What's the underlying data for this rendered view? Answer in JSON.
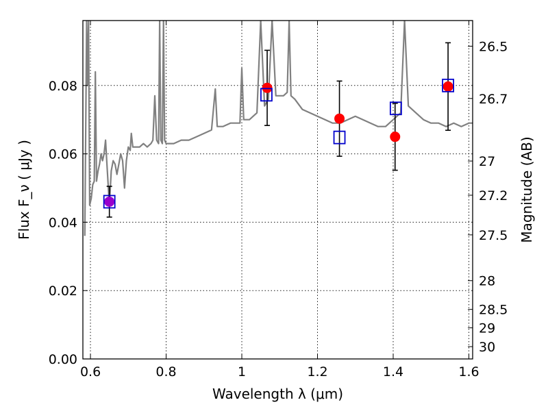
{
  "chart_data": {
    "type": "scatter",
    "title": "",
    "xlabel": "Wavelength  λ (μm)",
    "ylabel": "Flux  F_ν  ( μJy )",
    "ylabel_right": "Magnitude (AB)",
    "xlim": [
      0.58,
      1.61
    ],
    "ylim": [
      0.0,
      0.099
    ],
    "grid": true,
    "x_ticks": [
      0.6,
      0.8,
      1.0,
      1.2,
      1.4,
      1.6
    ],
    "x_tick_labels": [
      "0.6",
      "0.8",
      "1",
      "1.2",
      "1.4",
      "1.6"
    ],
    "y_ticks": [
      0.0,
      0.02,
      0.04,
      0.06,
      0.08
    ],
    "y_tick_labels": [
      "0.00",
      "0.02",
      "0.04",
      "0.06",
      "0.08"
    ],
    "right_axis_ticks": [
      {
        "mag": "26.5",
        "flux": 0.0915
      },
      {
        "mag": "26.7",
        "flux": 0.0762
      },
      {
        "mag": "27",
        "flux": 0.0579
      },
      {
        "mag": "27.2",
        "flux": 0.0479
      },
      {
        "mag": "27.5",
        "flux": 0.0363
      },
      {
        "mag": "28",
        "flux": 0.0229
      },
      {
        "mag": "28.5",
        "flux": 0.0145
      },
      {
        "mag": "29",
        "flux": 0.0091
      },
      {
        "mag": "30",
        "flux": 0.0036
      }
    ],
    "colors": {
      "spectrum": "#808080",
      "observed": "#ff0000",
      "model": "#0000cc",
      "overlap": "#9900cc",
      "errorbar": "#000000"
    },
    "series": [
      {
        "kind": "line",
        "values": [
          [
            0.585,
            0.036
          ],
          [
            0.59,
            0.099
          ],
          [
            0.592,
            0.08
          ],
          [
            0.595,
            0.099
          ],
          [
            0.598,
            0.045
          ],
          [
            0.602,
            0.047
          ],
          [
            0.606,
            0.051
          ],
          [
            0.61,
            0.052
          ],
          [
            0.613,
            0.084
          ],
          [
            0.616,
            0.052
          ],
          [
            0.62,
            0.055
          ],
          [
            0.624,
            0.057
          ],
          [
            0.628,
            0.06
          ],
          [
            0.632,
            0.058
          ],
          [
            0.636,
            0.06
          ],
          [
            0.64,
            0.064
          ],
          [
            0.643,
            0.058
          ],
          [
            0.65,
            0.045
          ],
          [
            0.655,
            0.055
          ],
          [
            0.66,
            0.058
          ],
          [
            0.665,
            0.057
          ],
          [
            0.67,
            0.054
          ],
          [
            0.675,
            0.057
          ],
          [
            0.68,
            0.06
          ],
          [
            0.685,
            0.058
          ],
          [
            0.69,
            0.05
          ],
          [
            0.695,
            0.058
          ],
          [
            0.7,
            0.062
          ],
          [
            0.705,
            0.061
          ],
          [
            0.708,
            0.066
          ],
          [
            0.712,
            0.062
          ],
          [
            0.72,
            0.062
          ],
          [
            0.73,
            0.062
          ],
          [
            0.74,
            0.063
          ],
          [
            0.75,
            0.062
          ],
          [
            0.76,
            0.063
          ],
          [
            0.765,
            0.064
          ],
          [
            0.77,
            0.077
          ],
          [
            0.775,
            0.064
          ],
          [
            0.78,
            0.063
          ],
          [
            0.783,
            0.099
          ],
          [
            0.786,
            0.064
          ],
          [
            0.79,
            0.063
          ],
          [
            0.793,
            0.099
          ],
          [
            0.796,
            0.064
          ],
          [
            0.8,
            0.063
          ],
          [
            0.82,
            0.063
          ],
          [
            0.84,
            0.064
          ],
          [
            0.86,
            0.064
          ],
          [
            0.88,
            0.065
          ],
          [
            0.9,
            0.066
          ],
          [
            0.92,
            0.067
          ],
          [
            0.93,
            0.079
          ],
          [
            0.935,
            0.068
          ],
          [
            0.95,
            0.068
          ],
          [
            0.97,
            0.069
          ],
          [
            0.98,
            0.069
          ],
          [
            0.995,
            0.069
          ],
          [
            1.0,
            0.085
          ],
          [
            1.005,
            0.07
          ],
          [
            1.02,
            0.07
          ],
          [
            1.04,
            0.072
          ],
          [
            1.05,
            0.099
          ],
          [
            1.06,
            0.074
          ],
          [
            1.07,
            0.076
          ],
          [
            1.08,
            0.099
          ],
          [
            1.09,
            0.077
          ],
          [
            1.1,
            0.077
          ],
          [
            1.11,
            0.077
          ],
          [
            1.12,
            0.078
          ],
          [
            1.125,
            0.099
          ],
          [
            1.13,
            0.077
          ],
          [
            1.14,
            0.076
          ],
          [
            1.16,
            0.073
          ],
          [
            1.18,
            0.072
          ],
          [
            1.2,
            0.071
          ],
          [
            1.22,
            0.07
          ],
          [
            1.24,
            0.069
          ],
          [
            1.26,
            0.069
          ],
          [
            1.28,
            0.07
          ],
          [
            1.3,
            0.071
          ],
          [
            1.32,
            0.07
          ],
          [
            1.34,
            0.069
          ],
          [
            1.36,
            0.068
          ],
          [
            1.38,
            0.068
          ],
          [
            1.4,
            0.07
          ],
          [
            1.42,
            0.072
          ],
          [
            1.43,
            0.099
          ],
          [
            1.44,
            0.074
          ],
          [
            1.46,
            0.072
          ],
          [
            1.48,
            0.07
          ],
          [
            1.5,
            0.069
          ],
          [
            1.52,
            0.069
          ],
          [
            1.54,
            0.068
          ],
          [
            1.56,
            0.069
          ],
          [
            1.58,
            0.068
          ],
          [
            1.6,
            0.069
          ],
          [
            1.61,
            0.069
          ]
        ]
      },
      {
        "kind": "points",
        "marker": "circle",
        "x": [
          0.65,
          1.067,
          1.258,
          1.405,
          1.545
        ],
        "y": [
          0.046,
          0.0793,
          0.0703,
          0.065,
          0.0797
        ],
        "yerr": [
          0.0045,
          0.011,
          0.011,
          0.0098,
          0.0128
        ]
      },
      {
        "kind": "points",
        "marker": "square",
        "x": [
          0.65,
          1.065,
          1.258,
          1.407,
          1.545
        ],
        "y": [
          0.046,
          0.0773,
          0.0648,
          0.0733,
          0.08
        ]
      }
    ]
  }
}
